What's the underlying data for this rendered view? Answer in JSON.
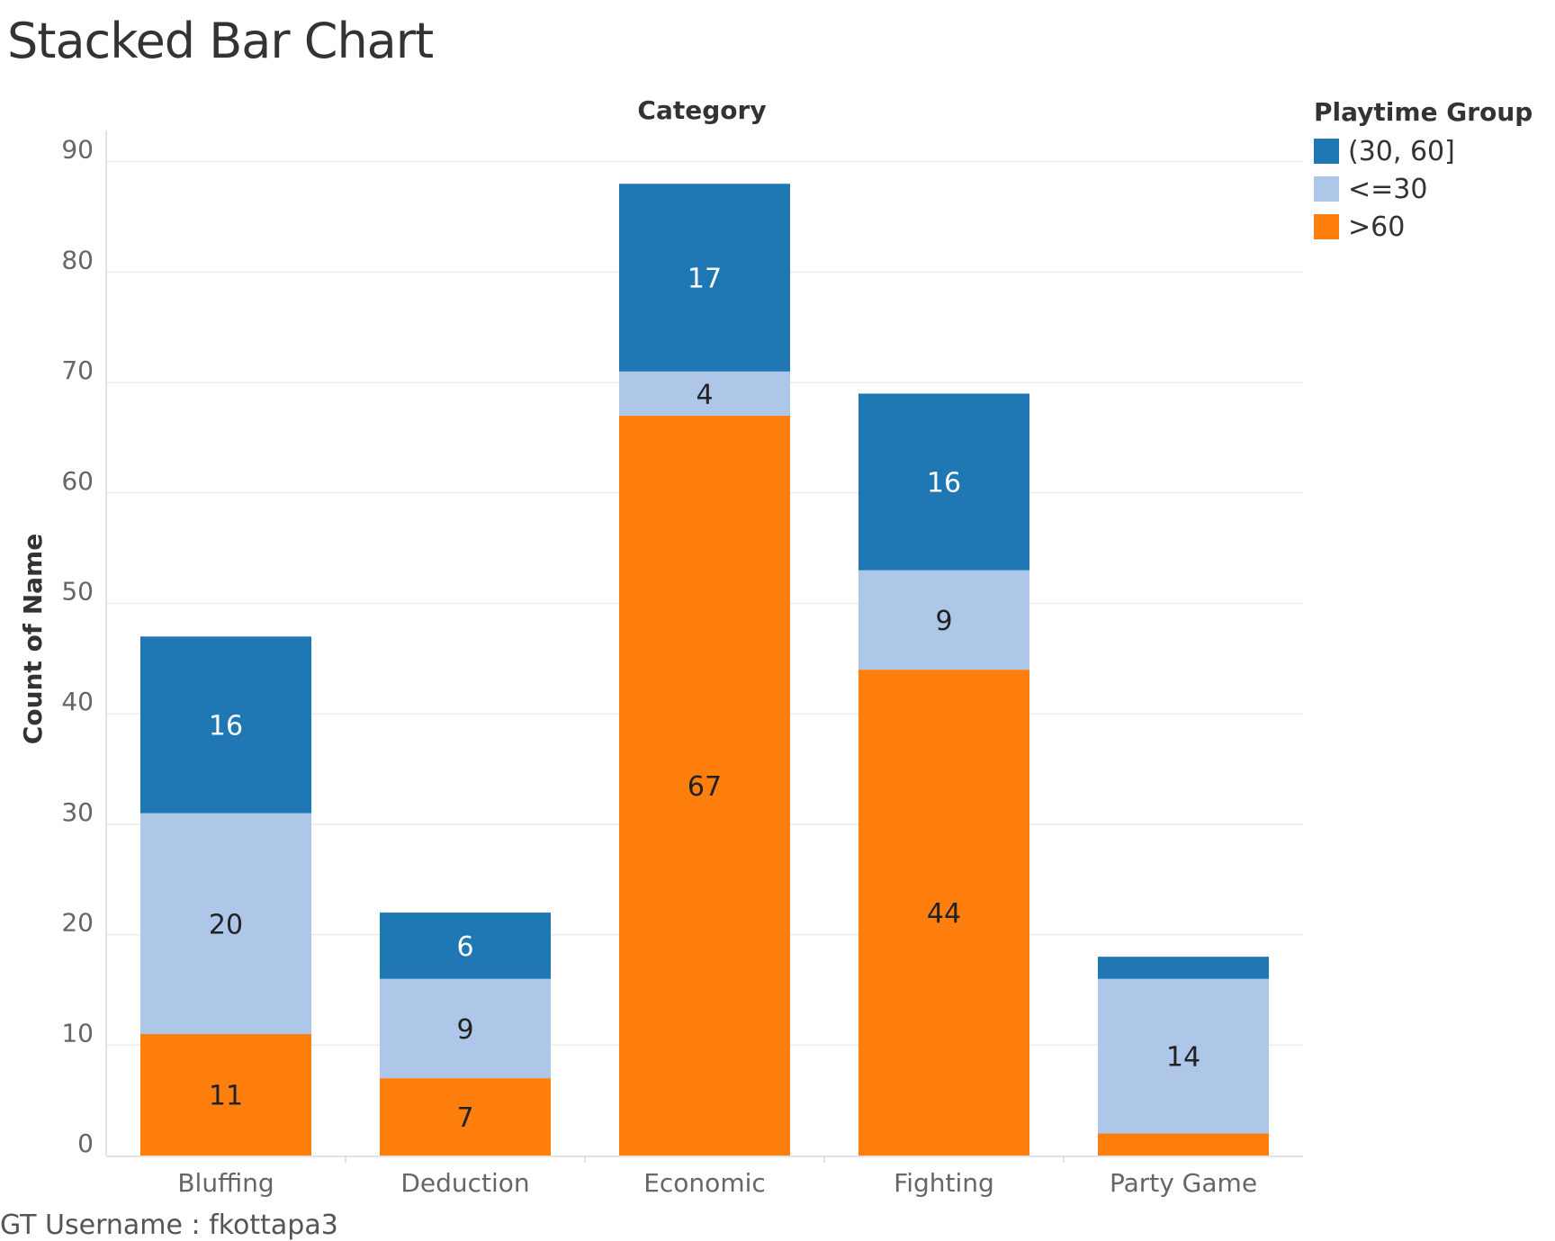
{
  "title": "Stacked Bar Chart",
  "footer": "GT Username : fkottapa3",
  "chart_data": {
    "type": "bar",
    "stacked": true,
    "title": "Stacked Bar Chart",
    "xlabel": "Category",
    "ylabel": "Count of Name",
    "ylim": [
      0,
      90
    ],
    "yticks": [
      0,
      10,
      20,
      30,
      40,
      50,
      60,
      70,
      80,
      90
    ],
    "grid": true,
    "categories": [
      "Bluffing",
      "Deduction",
      "Economic",
      "Fighting",
      "Party Game"
    ],
    "series": [
      {
        "name": ">60",
        "color": "#ff7f0e",
        "values": [
          11,
          7,
          67,
          44,
          2
        ],
        "labels": [
          "11",
          "7",
          "67",
          "44",
          ""
        ],
        "label_color": "#222222"
      },
      {
        "name": "<=30",
        "color": "#aec7e8",
        "values": [
          20,
          9,
          4,
          9,
          14
        ],
        "labels": [
          "20",
          "9",
          "4",
          "9",
          "14"
        ],
        "label_color": "#222222"
      },
      {
        "name": "(30, 60]",
        "color": "#1f77b4",
        "values": [
          16,
          6,
          17,
          16,
          2
        ],
        "labels": [
          "16",
          "6",
          "17",
          "16",
          ""
        ],
        "label_color": "#ffffff"
      }
    ],
    "legend": {
      "title": "Playtime Group",
      "position": "top-right",
      "items": [
        {
          "label": "(30, 60]",
          "color": "#1f77b4"
        },
        {
          "label": "<=30",
          "color": "#aec7e8"
        },
        {
          "label": ">60",
          "color": "#ff7f0e"
        }
      ]
    }
  }
}
